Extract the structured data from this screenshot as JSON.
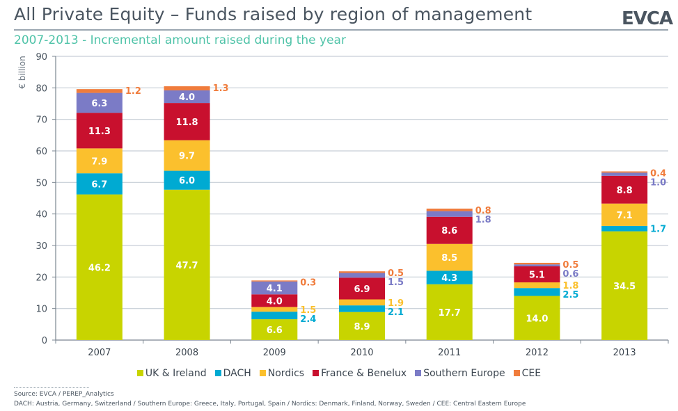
{
  "header": {
    "title": "All Private Equity – Funds raised by region of management",
    "logo": "EVCA",
    "subtitle": "2007-2013 - Incremental amount raised during the year"
  },
  "footer": {
    "source": "Source: EVCA / PEREP_Analytics",
    "definitions": "DACH: Austria, Germany, Switzerland / Southern Europe: Greece, Italy, Portugal, Spain / Nordics: Denmark, Finland, Norway, Sweden / CEE: Central Eastern Europe"
  },
  "chart_data": {
    "type": "bar",
    "stacked": true,
    "title": "All Private Equity – Funds raised by region of management",
    "subtitle": "2007-2013 - Incremental amount raised during the year",
    "xlabel": "",
    "ylabel": "€ billion",
    "ylim": [
      0,
      90
    ],
    "yticks": [
      0,
      10,
      20,
      30,
      40,
      50,
      60,
      70,
      80,
      90
    ],
    "grid": true,
    "legend_position": "bottom",
    "categories": [
      "2007",
      "2008",
      "2009",
      "2010",
      "2011",
      "2012",
      "2013"
    ],
    "series": [
      {
        "name": "UK & Ireland",
        "color": "#c8d400",
        "label_color": "#ffffff",
        "values": [
          46.2,
          47.7,
          6.6,
          8.9,
          17.7,
          14.0,
          34.5
        ]
      },
      {
        "name": "DACH",
        "color": "#00aad2",
        "label_color": "#ffffff",
        "values": [
          6.7,
          6.0,
          2.4,
          2.1,
          4.3,
          2.5,
          1.7
        ]
      },
      {
        "name": "Nordics",
        "color": "#fbc02d",
        "label_color": "#ffffff",
        "values": [
          7.9,
          9.7,
          1.5,
          1.9,
          8.5,
          1.8,
          7.1
        ]
      },
      {
        "name": "France & Benelux",
        "color": "#c8102e",
        "label_color": "#ffffff",
        "values": [
          11.3,
          11.8,
          4.0,
          6.9,
          8.6,
          5.1,
          8.8
        ]
      },
      {
        "name": "Southern Europe",
        "color": "#7b7bc6",
        "label_color": "#ffffff",
        "values": [
          6.3,
          4.0,
          4.1,
          1.5,
          1.8,
          0.6,
          1.0
        ]
      },
      {
        "name": "CEE",
        "color": "#f07c3c",
        "label_color": "#ffffff",
        "values": [
          1.2,
          1.3,
          0.3,
          0.5,
          0.8,
          0.5,
          0.4
        ]
      }
    ],
    "outside_labels": {
      "note": "series index per category whose value label is drawn to the right of the bar in the series color",
      "2007": [
        5
      ],
      "2008": [
        5
      ],
      "2009": [
        2,
        1,
        5
      ],
      "2010": [
        5,
        4,
        2,
        1
      ],
      "2011": [
        5,
        4
      ],
      "2012": [
        5,
        4,
        2,
        1
      ],
      "2013": [
        5,
        4,
        1
      ]
    }
  }
}
